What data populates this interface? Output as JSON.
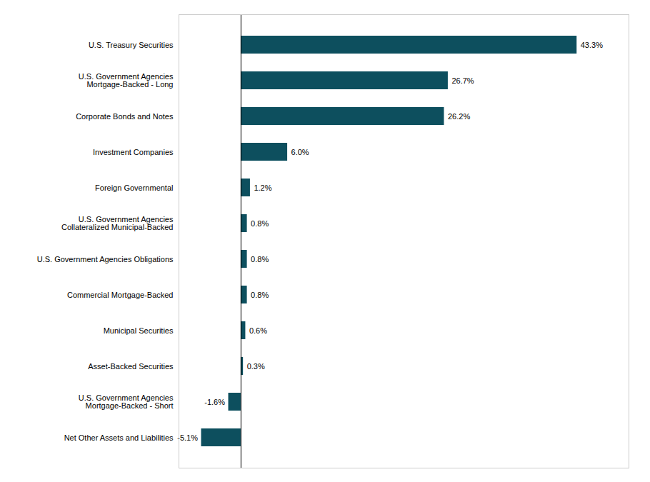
{
  "chart_data": {
    "type": "bar",
    "orientation": "horizontal",
    "categories": [
      "U.S. Treasury Securities",
      "U.S. Government Agencies\nMortgage-Backed - Long",
      "Corporate Bonds and Notes",
      "Investment Companies",
      "Foreign Governmental",
      "U.S. Government Agencies\nCollateralized Municipal-Backed",
      "U.S. Government Agencies Obligations",
      "Commercial Mortgage-Backed",
      "Municipal Securities",
      "Asset-Backed Securities",
      "U.S. Government Agencies\nMortgage-Backed - Short",
      "Net Other Assets and Liabilities"
    ],
    "values": [
      43.3,
      26.7,
      26.2,
      6.0,
      1.2,
      0.8,
      0.8,
      0.8,
      0.6,
      0.3,
      -1.6,
      -5.1
    ],
    "value_labels": [
      "43.3%",
      "26.7%",
      "26.2%",
      "6.0%",
      "1.2%",
      "0.8%",
      "0.8%",
      "0.8%",
      "0.6%",
      "0.3%",
      "-1.6%",
      "-5.1%"
    ],
    "data_labels": true,
    "color": "#0d4f5e",
    "xlim": [
      -8,
      50
    ],
    "tick_labels": "y"
  }
}
